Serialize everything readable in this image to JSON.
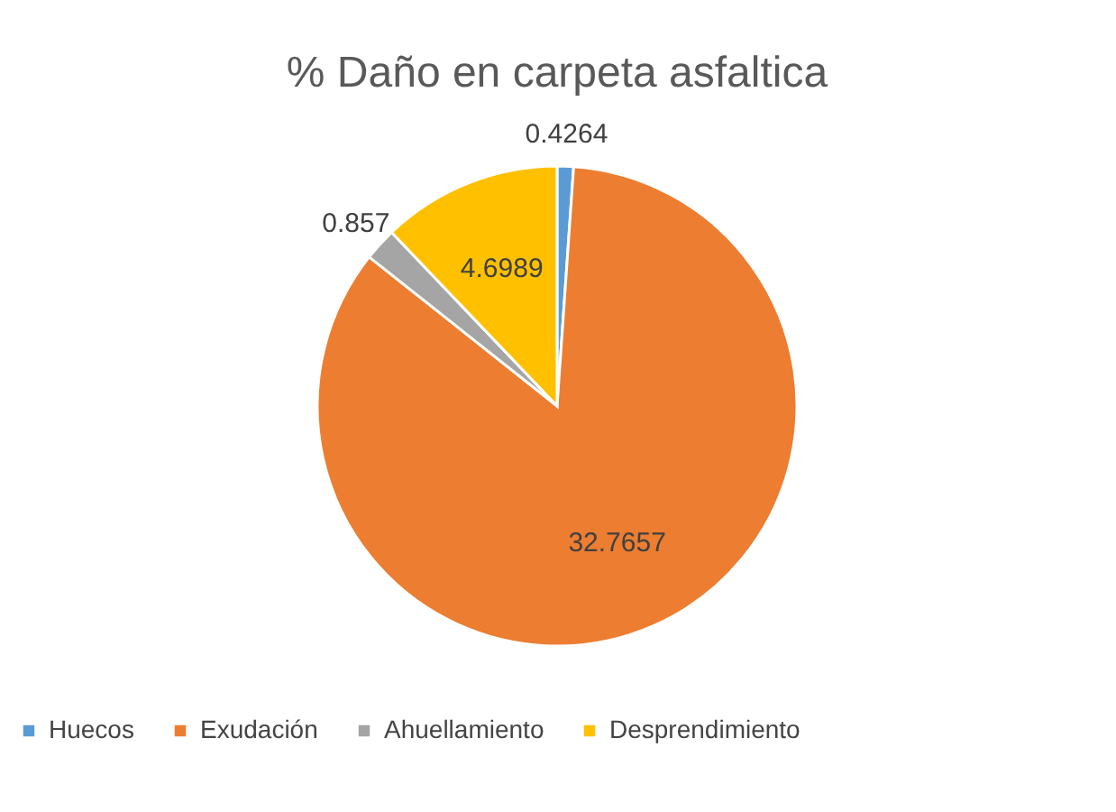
{
  "chart_data": {
    "type": "pie",
    "title": "% Daño en carpeta asfaltica",
    "categories": [
      "Huecos",
      "Exudación",
      "Ahuellamiento",
      "Desprendimiento"
    ],
    "values": [
      0.4264,
      32.7657,
      0.857,
      4.6989
    ],
    "colors": [
      "#5b9bd5",
      "#ed7d31",
      "#a5a5a5",
      "#ffc000"
    ],
    "data_labels": true,
    "legend": "bottom"
  }
}
